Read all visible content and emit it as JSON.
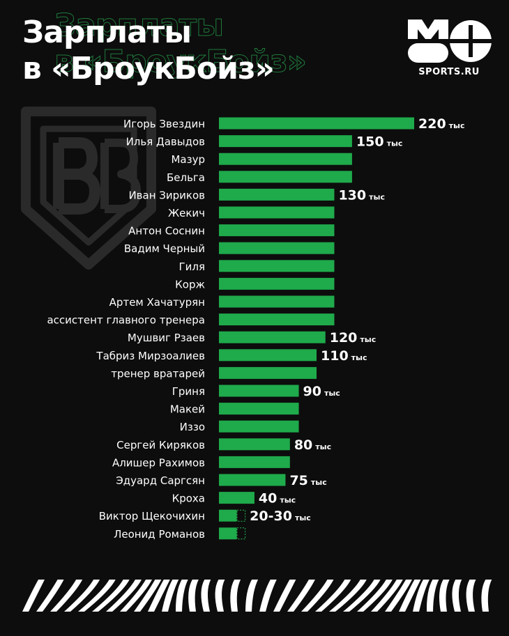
{
  "header": {
    "title_line1": "Зарплаты",
    "title_line2": "в «БроукБойз»",
    "brand": "SPORTS.RU"
  },
  "colors": {
    "background": "#0d0d0d",
    "bar": "#1faa4b",
    "bar_outline": "#29c25a",
    "text": "#ffffff",
    "emblem": "#2a2a2a"
  },
  "icons": {
    "brand_logo": "mo-logo-icon",
    "emblem": "broukboiz-shield-icon",
    "footer": "wave-stripes-pattern"
  },
  "chart_data": {
    "type": "bar",
    "orientation": "horizontal",
    "unit": "тыс",
    "categories": [
      "Игорь Звездин",
      "Илья Давыдов",
      "Мазур",
      "Бельга",
      "Иван Зириков",
      "Жекич",
      "Антон Соснин",
      "Вадим Черный",
      "Гиля",
      "Корж",
      "Артем Хачатурян",
      "ассистент главного тренера",
      "Мушвиг Рзаев",
      "Табриз Мирзоалиев",
      "тренер вратарей",
      "Гриня",
      "Макей",
      "Иззо",
      "Сергей Киряков",
      "Алишер Рахимов",
      "Эдуард Саргсян",
      "Кроха",
      "Виктор Щекочихин",
      "Леонид Романов"
    ],
    "values": [
      220,
      150,
      150,
      150,
      130,
      130,
      130,
      130,
      130,
      130,
      130,
      130,
      120,
      110,
      110,
      90,
      90,
      90,
      80,
      80,
      75,
      40,
      20,
      20
    ],
    "range_max": [
      null,
      null,
      null,
      null,
      null,
      null,
      null,
      null,
      null,
      null,
      null,
      null,
      null,
      null,
      null,
      null,
      null,
      null,
      null,
      null,
      null,
      null,
      30,
      30
    ],
    "data_labels": [
      "220",
      "150",
      "",
      "",
      "130",
      "",
      "",
      "",
      "",
      "",
      "",
      "",
      "120",
      "110",
      "",
      "90",
      "",
      "",
      "80",
      "",
      "75",
      "40",
      "20-30",
      ""
    ],
    "xlim": [
      0,
      220
    ],
    "grid": false,
    "legend": "none"
  }
}
